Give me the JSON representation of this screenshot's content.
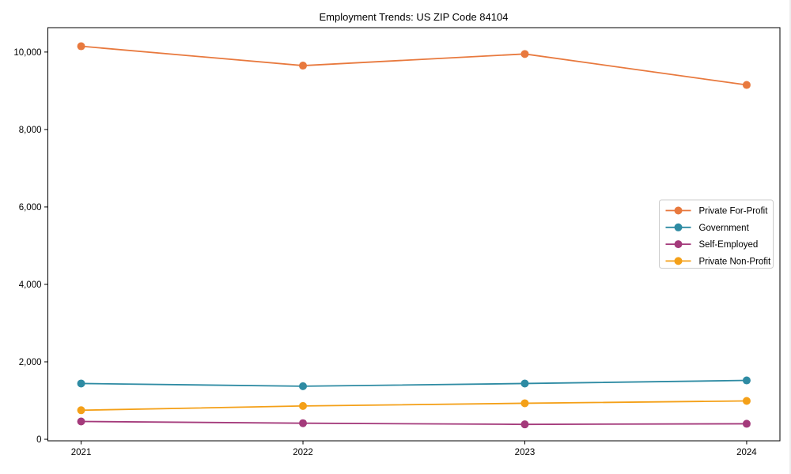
{
  "chart_data": {
    "type": "line",
    "title": "Employment Trends: US ZIP Code 84104",
    "x": [
      2021,
      2022,
      2023,
      2024
    ],
    "xtick_labels": [
      "2021",
      "2022",
      "2023",
      "2024"
    ],
    "ytick_values": [
      0,
      2000,
      4000,
      6000,
      8000,
      10000
    ],
    "ytick_labels": [
      "0",
      "2,000",
      "4,000",
      "6,000",
      "8,000",
      "10,000"
    ],
    "xlim": [
      2020.85,
      2024.15
    ],
    "ylim": [
      -40,
      10630
    ],
    "grid": false,
    "legend_position": "center-right",
    "series": [
      {
        "name": "Private For-Profit",
        "color": "#E8793E",
        "values": [
          10150,
          9650,
          9950,
          9150
        ]
      },
      {
        "name": "Government",
        "color": "#2E8BA3",
        "values": [
          1440,
          1370,
          1440,
          1520
        ]
      },
      {
        "name": "Self-Employed",
        "color": "#A43A7B",
        "values": [
          460,
          415,
          385,
          400
        ]
      },
      {
        "name": "Private Non-Profit",
        "color": "#F4A018",
        "values": [
          750,
          860,
          930,
          990
        ]
      }
    ],
    "colors": {
      "axis": "#000000",
      "tick_label": "#000000",
      "legend_border": "#cccccc",
      "background": "#ffffff"
    }
  }
}
